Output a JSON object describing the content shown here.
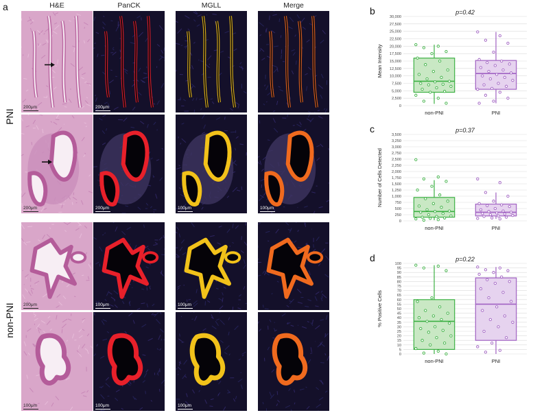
{
  "figure": {
    "panel_a": "a",
    "row_labels": {
      "pni": "PNI",
      "non_pni": "non-PNI"
    },
    "column_headers": [
      "H&E",
      "PanCK",
      "MGLL",
      "Merge"
    ],
    "scale_bars": {
      "pni_1": [
        "200μm",
        "200μm",
        "",
        ""
      ],
      "pni_2": [
        "200μm",
        "200μm",
        "100μm",
        "100μm"
      ],
      "nonpni_1": [
        "200μm",
        "100μm",
        "100μm",
        ""
      ],
      "nonpni_2": [
        "100μm",
        "100μm",
        "100μm",
        ""
      ]
    },
    "colors": {
      "he_bg": "#d9a6c9",
      "he_dark": "#b45c9a",
      "if_bg": "#14102a",
      "panck": "#e8202a",
      "mgll": "#f2c21a",
      "merge": "#f06a1e",
      "green": "#3cb043",
      "green_fill": "#c9e8c4",
      "purple": "#a061c2",
      "purple_fill": "#e6d3ef"
    }
  },
  "chart_data": [
    {
      "panel": "b",
      "type": "box",
      "title": "p=0.42",
      "ylabel": "Mean Intensity",
      "ylim": [
        0,
        30000
      ],
      "yticks": [
        "0",
        "2,500",
        "5,000",
        "7,500",
        "10,000",
        "12,500",
        "15,000",
        "17,500",
        "20,000",
        "22,500",
        "25,000",
        "27,500",
        "30,000"
      ],
      "ytick_values": [
        0,
        2500,
        5000,
        7500,
        10000,
        12500,
        15000,
        17500,
        20000,
        22500,
        25000,
        27500,
        30000
      ],
      "categories": [
        "non-PNI",
        "PNI"
      ],
      "series": [
        {
          "name": "non-PNI",
          "q1": 4500,
          "median": 8200,
          "q3": 16000,
          "min": 600,
          "max": 20500,
          "points": [
            20500,
            20000,
            19500,
            18200,
            17500,
            16000,
            15000,
            13800,
            12000,
            11500,
            10500,
            9500,
            9000,
            8200,
            8000,
            7500,
            7200,
            7000,
            6500,
            6000,
            5500,
            4800,
            4500,
            3500,
            2500,
            1500,
            800
          ]
        },
        {
          "name": "PNI",
          "q1": 5500,
          "median": 10800,
          "q3": 15200,
          "min": 800,
          "max": 24800,
          "points": [
            24800,
            23500,
            22000,
            21000,
            18000,
            15500,
            15000,
            14500,
            14000,
            13500,
            12800,
            12000,
            11500,
            11000,
            10500,
            10000,
            9500,
            9000,
            8500,
            7500,
            7000,
            6500,
            5800,
            5500,
            4500,
            3500,
            2500,
            1500,
            800
          ]
        }
      ]
    },
    {
      "panel": "c",
      "type": "box",
      "title": "p=0.37",
      "ylabel": "Number of Cells Detected",
      "ylim": [
        0,
        3500
      ],
      "yticks": [
        "0",
        "250",
        "500",
        "750",
        "1,000",
        "1,250",
        "1,500",
        "1,750",
        "2,000",
        "2,250",
        "2,500",
        "2,750",
        "3,000",
        "3,250",
        "3,500"
      ],
      "ytick_values": [
        0,
        250,
        500,
        750,
        1000,
        1250,
        1500,
        1750,
        2000,
        2250,
        2500,
        2750,
        3000,
        3250,
        3500
      ],
      "categories": [
        "non-PNI",
        "PNI"
      ],
      "series": [
        {
          "name": "non-PNI",
          "q1": 150,
          "median": 380,
          "q3": 950,
          "min": 30,
          "max": 1650,
          "points": [
            2480,
            1780,
            1700,
            1600,
            1400,
            1250,
            1050,
            900,
            800,
            700,
            600,
            550,
            450,
            400,
            380,
            350,
            300,
            250,
            200,
            180,
            150,
            120,
            100,
            80,
            50,
            30
          ]
        },
        {
          "name": "PNI",
          "q1": 200,
          "median": 350,
          "q3": 680,
          "min": 80,
          "max": 1150,
          "points": [
            1700,
            1550,
            1150,
            1000,
            800,
            700,
            650,
            620,
            580,
            500,
            450,
            400,
            380,
            350,
            320,
            300,
            280,
            250,
            220,
            200,
            180,
            150,
            120,
            100,
            80
          ]
        }
      ]
    },
    {
      "panel": "d",
      "type": "box",
      "title": "p=0.22",
      "ylabel": "% Positive Cells",
      "ylim": [
        0,
        100
      ],
      "yticks": [
        "0",
        "5",
        "10",
        "15",
        "20",
        "25",
        "30",
        "35",
        "40",
        "45",
        "50",
        "55",
        "60",
        "65",
        "70",
        "75",
        "80",
        "85",
        "90",
        "95",
        "100"
      ],
      "ytick_values": [
        0,
        5,
        10,
        15,
        20,
        25,
        30,
        35,
        40,
        45,
        50,
        55,
        60,
        65,
        70,
        75,
        80,
        85,
        90,
        95,
        100
      ],
      "categories": [
        "non-PNI",
        "PNI"
      ],
      "series": [
        {
          "name": "non-PNI",
          "q1": 5,
          "median": 36,
          "q3": 60,
          "min": 0,
          "max": 98,
          "points": [
            98,
            97,
            95,
            92,
            62,
            58,
            52,
            48,
            45,
            42,
            40,
            38,
            36,
            34,
            30,
            28,
            26,
            24,
            20,
            18,
            15,
            12,
            10,
            6,
            3,
            1,
            0
          ]
        },
        {
          "name": "PNI",
          "q1": 15,
          "median": 55,
          "q3": 84,
          "min": 0,
          "max": 96,
          "points": [
            96,
            95,
            93,
            92,
            90,
            88,
            85,
            82,
            80,
            78,
            72,
            68,
            62,
            58,
            52,
            48,
            42,
            38,
            35,
            30,
            25,
            18,
            12,
            8,
            4,
            2
          ]
        }
      ]
    }
  ]
}
